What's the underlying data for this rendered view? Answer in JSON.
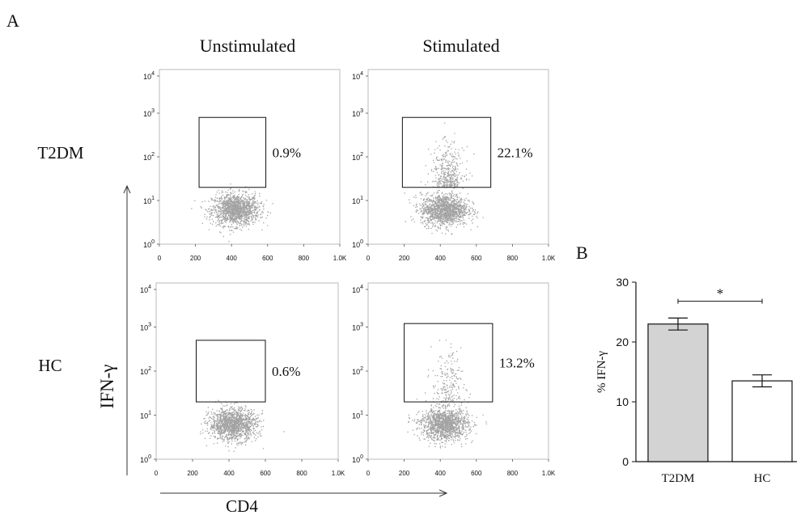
{
  "figure": {
    "panel_a_label": "A",
    "panel_b_label": "B",
    "col_headers": [
      "Unstimulated",
      "Stimulated"
    ],
    "row_labels": [
      "T2DM",
      "HC"
    ],
    "y_axis_label": "IFN-γ",
    "x_axis_label": "CD4"
  },
  "chart_data": [
    {
      "type": "scatter",
      "panel": "A",
      "kind": "flow-cytometry-dot-plots",
      "xlabel": "CD4",
      "ylabel": "IFN-γ",
      "x_ticks": [
        "0",
        "200",
        "400",
        "600",
        "800",
        "1.0K"
      ],
      "y_ticks": [
        "10^0",
        "10^1",
        "10^2",
        "10^3",
        "10^4"
      ],
      "xlim": [
        0,
        1000
      ],
      "y_scale": "log",
      "ylim": [
        1,
        10000
      ],
      "plots": [
        {
          "row": "T2DM",
          "col": "Unstimulated",
          "gate_percent": "0.9%",
          "gate": {
            "x": [
              220,
              590
            ],
            "y": [
              20,
              800
            ]
          }
        },
        {
          "row": "T2DM",
          "col": "Stimulated",
          "gate_percent": "22.1%",
          "gate": {
            "x": [
              190,
              680
            ],
            "y": [
              20,
              800
            ]
          }
        },
        {
          "row": "HC",
          "col": "Unstimulated",
          "gate_percent": "0.6%",
          "gate": {
            "x": [
              220,
              600
            ],
            "y": [
              20,
              500
            ]
          }
        },
        {
          "row": "HC",
          "col": "Stimulated",
          "gate_percent": "13.2%",
          "gate": {
            "x": [
              200,
              690
            ],
            "y": [
              20,
              1200
            ]
          }
        }
      ]
    },
    {
      "type": "bar",
      "panel": "B",
      "categories": [
        "T2DM",
        "HC"
      ],
      "values": [
        23.0,
        13.5
      ],
      "errors": [
        1.0,
        1.0
      ],
      "colors": [
        "#d3d3d3",
        "#ffffff"
      ],
      "ylabel": "% IFN-γ",
      "ylim": [
        0,
        30
      ],
      "y_ticks": [
        "0",
        "10",
        "20",
        "30"
      ],
      "significance": "*"
    }
  ]
}
